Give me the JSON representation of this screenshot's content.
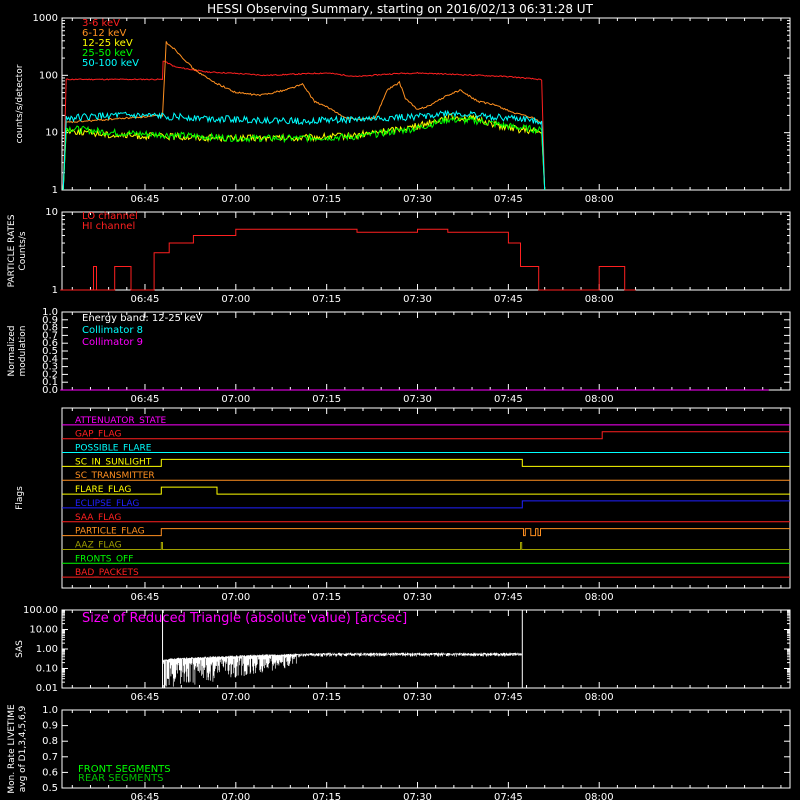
{
  "title": "HESSI Observing Summary, starting on 2016/02/13 06:31:28 UT",
  "colors": {
    "background": "#000000",
    "axes": "#ffffff",
    "red": "#ff2020",
    "orange": "#ff9020",
    "yellow": "#ffff00",
    "green": "#00ff00",
    "cyan": "#00ffff",
    "magenta": "#ff00ff",
    "blue": "#2020ff",
    "olive": "#a0a000",
    "darkgreen": "#00c000"
  },
  "time_axis": {
    "range_min": [
      6.52,
      8.47
    ],
    "tick_labels": [
      "06:45",
      "07:00",
      "07:15",
      "07:30",
      "07:45",
      "08:00"
    ],
    "tick_minutes": [
      405,
      420,
      435,
      450,
      465,
      480
    ]
  },
  "chart_data": [
    {
      "id": "counts",
      "type": "line",
      "ylabel": "counts/s/detector",
      "yscale": "log",
      "ylim": [
        1,
        1000
      ],
      "y_tick_labels": [
        "1",
        "10",
        "100",
        "1000"
      ],
      "x_unit": "minutes since 00:00 UT",
      "series": [
        {
          "name": "3-6 keV",
          "color": "#ff2020",
          "x": [
            391.5,
            392,
            407.9,
            408,
            410,
            415,
            420,
            425,
            430,
            435,
            440,
            445,
            447,
            450,
            455,
            460,
            465,
            470,
            470.5,
            471
          ],
          "y": [
            1,
            85,
            85,
            180,
            140,
            115,
            108,
            100,
            105,
            110,
            95,
            105,
            108,
            110,
            105,
            100,
            95,
            85,
            82,
            1
          ]
        },
        {
          "name": "6-12 keV",
          "color": "#ff9020",
          "x": [
            391.5,
            392,
            407.9,
            408.5,
            410,
            413,
            416,
            420,
            424,
            428,
            431,
            433,
            436,
            438,
            440,
            443,
            445,
            447,
            448,
            450,
            452,
            455,
            457,
            460,
            463,
            466,
            469,
            470.5
          ],
          "y": [
            1,
            15,
            20,
            380,
            280,
            130,
            80,
            50,
            45,
            55,
            70,
            35,
            25,
            18,
            17,
            18,
            55,
            75,
            40,
            25,
            30,
            45,
            55,
            35,
            30,
            22,
            18,
            15
          ]
        },
        {
          "name": "12-25 keV",
          "color": "#ffff00",
          "x": [
            391.5,
            392,
            400,
            410,
            420,
            430,
            440,
            450,
            455,
            460,
            465,
            470.5,
            471
          ],
          "y": [
            1,
            11,
            9,
            8.5,
            8,
            8,
            9,
            13,
            19,
            17,
            12,
            10,
            1
          ]
        },
        {
          "name": "25-50 keV",
          "color": "#00ff00",
          "x": [
            391.5,
            392,
            400,
            410,
            420,
            430,
            440,
            450,
            455,
            460,
            465,
            470.5,
            471
          ],
          "y": [
            1,
            12,
            10,
            9,
            8,
            8,
            8.5,
            12,
            17,
            16,
            13,
            11,
            1
          ]
        },
        {
          "name": "50-100 keV",
          "color": "#00ffff",
          "x": [
            391.5,
            392,
            400,
            410,
            420,
            430,
            440,
            450,
            455,
            460,
            465,
            470.5,
            471
          ],
          "y": [
            1,
            18,
            20,
            19,
            17,
            16,
            17,
            19,
            22,
            20,
            18,
            16,
            1
          ]
        }
      ]
    },
    {
      "id": "particle",
      "type": "line",
      "ylabel": "PARTICLE RATES",
      "ylabel2": "Counts/s",
      "yscale": "log",
      "ylim": [
        1,
        10
      ],
      "y_tick_labels": [
        "1",
        "10"
      ],
      "x_unit": "minutes since 00:00 UT",
      "series": [
        {
          "name": "LO channel",
          "color": "#ff2020",
          "x": [],
          "y": []
        },
        {
          "name": "HI channel",
          "color": "#ff2020",
          "x": [
            391,
            396.5,
            396.5,
            397,
            397,
            391.2,
            397.2,
            400,
            400,
            402.7,
            402.7,
            406.5,
            406.5,
            409,
            409,
            413,
            413,
            420,
            420,
            440,
            440,
            450,
            450,
            455,
            455,
            465,
            465,
            467,
            467,
            470,
            470,
            480,
            480,
            484.2,
            484.2,
            486
          ],
          "y": [
            1,
            1,
            2,
            2,
            1,
            1,
            1,
            1,
            2,
            2,
            1,
            1,
            3,
            3,
            4,
            4,
            5,
            5,
            6,
            6,
            5.5,
            5.5,
            6,
            6,
            5.5,
            5.5,
            4,
            4,
            2,
            2,
            1,
            1,
            2,
            2,
            1,
            1
          ]
        }
      ]
    },
    {
      "id": "modulation",
      "type": "line",
      "ylabel": "Normalized",
      "ylabel2": "modulation",
      "ylim": [
        0.0,
        1.0
      ],
      "y_tick_labels": [
        "0.0",
        "0.1",
        "0.2",
        "0.3",
        "0.4",
        "0.5",
        "0.6",
        "0.7",
        "0.8",
        "0.9",
        "1.0"
      ],
      "annotation": "Energy band: 12-25 keV",
      "series": [
        {
          "name": "Collimator 8",
          "color": "#00ffff",
          "x": [],
          "y": []
        },
        {
          "name": "Collimator 9",
          "color": "#ff00ff",
          "x": [
            391,
            508
          ],
          "y": [
            0,
            0
          ]
        }
      ]
    },
    {
      "id": "flags",
      "type": "line",
      "ylabel": "Flags",
      "x_unit": "minutes since 00:00 UT",
      "series": [
        {
          "name": "ATTENUATOR_STATE",
          "color": "#ff00ff",
          "steps": []
        },
        {
          "name": "GAP_FLAG",
          "color": "#ff2020",
          "steps": [
            [
              480.5,
              1
            ]
          ]
        },
        {
          "name": "POSSIBLE_FLARE",
          "color": "#00ffff",
          "steps": []
        },
        {
          "name": "SC_IN_SUNLIGHT",
          "color": "#ffff00",
          "steps": [
            [
              407.7,
              1
            ],
            [
              467.3,
              0
            ]
          ]
        },
        {
          "name": "SC_TRANSMITTER",
          "color": "#ff9020",
          "steps": []
        },
        {
          "name": "FLARE_FLAG",
          "color": "#ffff00",
          "steps": [
            [
              407.7,
              1
            ],
            [
              416.9,
              0
            ]
          ]
        },
        {
          "name": "ECLIPSE_FLAG",
          "color": "#2020ff",
          "steps": [
            [
              407.7,
              0
            ],
            [
              467.3,
              1
            ]
          ]
        },
        {
          "name": "SAA_FLAG",
          "color": "#ff2020",
          "steps": []
        },
        {
          "name": "PARTICLE_FLAG",
          "color": "#ff9020",
          "steps": [
            [
              407.7,
              1
            ],
            [
              467.5,
              0
            ],
            [
              467.8,
              1
            ],
            [
              468.7,
              0
            ],
            [
              469.5,
              1
            ],
            [
              469.9,
              0
            ],
            [
              470.3,
              1
            ]
          ]
        },
        {
          "name": "AAZ_FLAG",
          "color": "#a0a000",
          "steps": [
            [
              407.7,
              1
            ],
            [
              407.9,
              0
            ],
            [
              467.0,
              1
            ],
            [
              467.2,
              0
            ]
          ]
        },
        {
          "name": "FRONTS_OFF",
          "color": "#00ff00",
          "steps": []
        },
        {
          "name": "BAD_PACKETS",
          "color": "#ff2020",
          "steps": []
        }
      ]
    },
    {
      "id": "sas",
      "type": "line",
      "ylabel": "SAS",
      "yscale": "log",
      "ylim": [
        0.01,
        100
      ],
      "y_tick_labels": [
        "0.01",
        "0.10",
        "1.00",
        "10.00",
        "100.00"
      ],
      "annotation": "Size of Reduced Triangle (absolute value) [arcsec]",
      "series": [
        {
          "name": "triangle",
          "color": "#ffffff",
          "x": [
            407.9,
            410,
            415,
            420,
            425,
            430,
            435,
            440,
            445,
            450,
            455,
            460,
            465,
            467.3
          ],
          "y": [
            0.25,
            0.3,
            0.35,
            0.4,
            0.45,
            0.5,
            0.55,
            0.55,
            0.55,
            0.55,
            0.55,
            0.55,
            0.55,
            0.55
          ]
        }
      ]
    },
    {
      "id": "livetime",
      "type": "line",
      "ylabel": "Mon. Rate LIVETIME",
      "ylabel2": "avg of D1,3,4,5,6,9",
      "ylim": [
        0.5,
        1.0
      ],
      "y_tick_labels": [
        "0.5",
        "0.6",
        "0.7",
        "0.8",
        "0.9",
        "1.0"
      ],
      "series": [
        {
          "name": "FRONT SEGMENTS",
          "color": "#00ff00",
          "x": [],
          "y": []
        },
        {
          "name": "REAR SEGMENTS",
          "color": "#00c000",
          "x": [],
          "y": []
        }
      ]
    }
  ]
}
